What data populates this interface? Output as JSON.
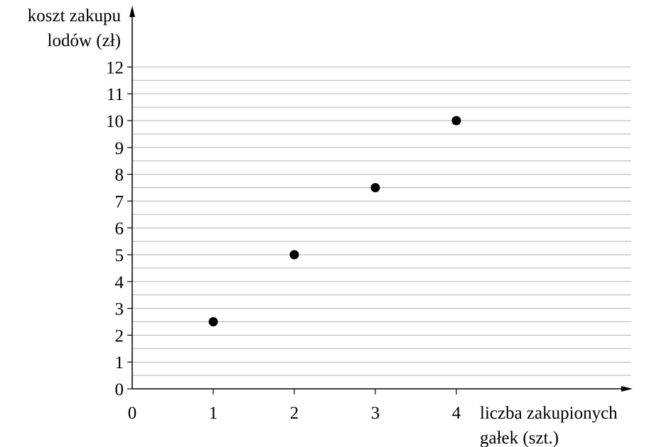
{
  "chart_data": {
    "type": "scatter",
    "title": "",
    "ylabel_lines": [
      "koszt zakupu",
      "lodów (zł)"
    ],
    "xlabel_lines": [
      "liczba zakupionych",
      "gałek (szt.)"
    ],
    "x_ticks": [
      "0",
      "1",
      "2",
      "3",
      "4"
    ],
    "y_ticks": [
      "0",
      "1",
      "2",
      "3",
      "4",
      "5",
      "6",
      "7",
      "8",
      "9",
      "10",
      "11",
      "12"
    ],
    "xlim": [
      0,
      6
    ],
    "ylim": [
      0,
      12
    ],
    "grid_step": 0.5,
    "grid": "horizontal",
    "points": [
      {
        "x": 1,
        "y": 2.5
      },
      {
        "x": 2,
        "y": 5
      },
      {
        "x": 3,
        "y": 7.5
      },
      {
        "x": 4,
        "y": 10
      }
    ]
  }
}
